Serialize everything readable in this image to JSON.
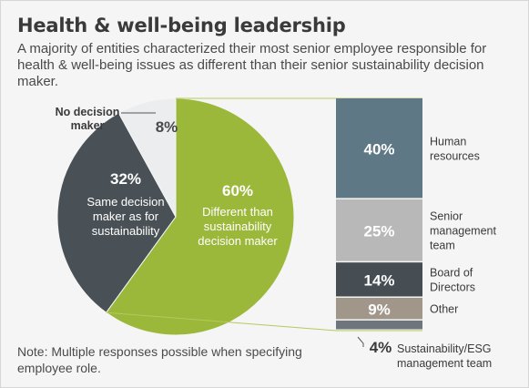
{
  "title": "Health & well-being leadership",
  "subtitle": "A majority of entities characterized their most senior employee responsible for health & well-being issues as different than their senior sustainability decision maker.",
  "note": "Note: Multiple responses possible when specifying employee role.",
  "colors": {
    "green": "#9cb83a",
    "dark": "#4a5156",
    "light": "#ecedee",
    "blue_gray": "#5e7885",
    "gray": "#b8b8b8",
    "charcoal": "#474e53",
    "taupe": "#a1968a",
    "slate": "#6f767b"
  },
  "chart_data": [
    {
      "type": "pie",
      "slices": [
        {
          "value": 60,
          "label_value": "60%",
          "label": "Different than sustainability decision maker",
          "color": "#9cb83a"
        },
        {
          "value": 32,
          "label_value": "32%",
          "label": "Same decision maker as for sustainability",
          "color": "#4a5156"
        },
        {
          "value": 8,
          "label_value": "8%",
          "label": "No decision maker",
          "color": "#ecedee"
        }
      ]
    },
    {
      "type": "bar",
      "orientation": "stacked-vertical",
      "categories": [
        "Human resources",
        "Senior management team",
        "Board of Directors",
        "Other",
        "Sustainability/ESG management team"
      ],
      "values": [
        40,
        25,
        14,
        9,
        4
      ],
      "value_labels": [
        "40%",
        "25%",
        "14%",
        "9%",
        "4%"
      ],
      "colors": [
        "#5e7885",
        "#b8b8b8",
        "#474e53",
        "#a1968a",
        "#6f767b"
      ]
    }
  ]
}
